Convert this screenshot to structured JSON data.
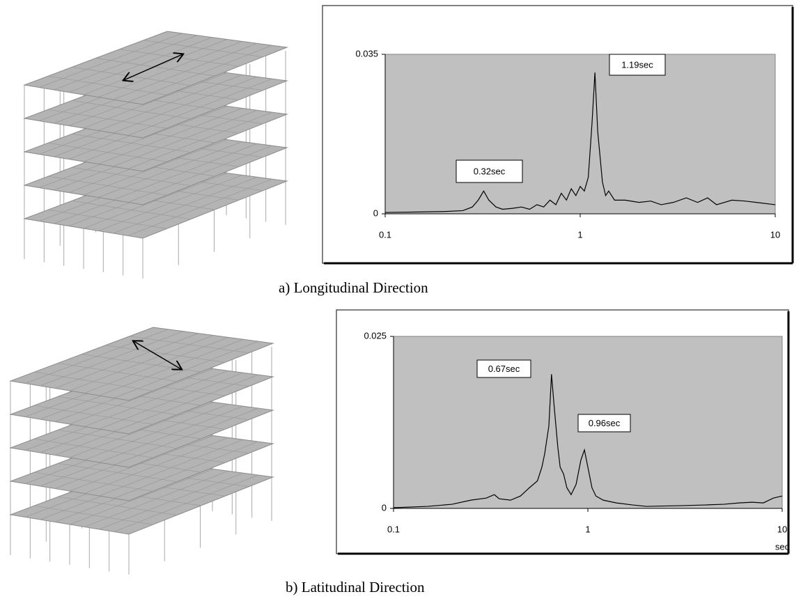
{
  "chart_data": [
    {
      "type": "line",
      "xscale": "log",
      "xlim": [
        0.1,
        10
      ],
      "xticks": [
        0.1,
        1,
        10
      ],
      "ylim": [
        0,
        0.035
      ],
      "yticks": [
        0,
        0.035
      ],
      "annotations": [
        "0.32sec",
        "1.19sec"
      ],
      "x": [
        0.1,
        0.15,
        0.2,
        0.25,
        0.28,
        0.3,
        0.32,
        0.34,
        0.37,
        0.4,
        0.45,
        0.5,
        0.55,
        0.6,
        0.65,
        0.7,
        0.75,
        0.8,
        0.85,
        0.9,
        0.95,
        1.0,
        1.05,
        1.1,
        1.15,
        1.19,
        1.23,
        1.3,
        1.35,
        1.4,
        1.5,
        1.7,
        2,
        2.3,
        2.6,
        3,
        3.5,
        4,
        4.5,
        5,
        6,
        7,
        8,
        10
      ],
      "series": [
        {
          "color": "#000000",
          "values": [
            0.0003,
            0.0004,
            0.0005,
            0.0007,
            0.0015,
            0.003,
            0.005,
            0.003,
            0.0015,
            0.001,
            0.0012,
            0.0015,
            0.001,
            0.002,
            0.0015,
            0.003,
            0.002,
            0.0045,
            0.003,
            0.0055,
            0.004,
            0.006,
            0.005,
            0.008,
            0.02,
            0.031,
            0.018,
            0.007,
            0.004,
            0.005,
            0.003,
            0.003,
            0.0025,
            0.0028,
            0.002,
            0.0025,
            0.0035,
            0.0025,
            0.0035,
            0.002,
            0.003,
            0.0028,
            0.0025,
            0.002
          ]
        }
      ]
    },
    {
      "type": "line",
      "xscale": "log",
      "xlim": [
        0.1,
        10
      ],
      "xticks": [
        0.1,
        1,
        10
      ],
      "ylim": [
        0,
        0.025
      ],
      "yticks": [
        0,
        0.025
      ],
      "xlabel": "sec",
      "annotations": [
        "0.67sec",
        "0.96sec"
      ],
      "x": [
        0.1,
        0.15,
        0.2,
        0.25,
        0.3,
        0.33,
        0.35,
        0.4,
        0.45,
        0.5,
        0.55,
        0.58,
        0.6,
        0.63,
        0.65,
        0.67,
        0.7,
        0.72,
        0.75,
        0.78,
        0.82,
        0.87,
        0.92,
        0.96,
        1.0,
        1.05,
        1.1,
        1.2,
        1.4,
        1.7,
        2,
        3,
        4,
        5,
        6,
        7,
        8,
        9,
        10
      ],
      "series": [
        {
          "color": "#000000",
          "values": [
            0.0001,
            0.0003,
            0.0006,
            0.0012,
            0.0015,
            0.002,
            0.0014,
            0.0012,
            0.0018,
            0.003,
            0.004,
            0.006,
            0.008,
            0.012,
            0.0195,
            0.015,
            0.009,
            0.006,
            0.005,
            0.003,
            0.002,
            0.0035,
            0.007,
            0.0085,
            0.006,
            0.003,
            0.0018,
            0.0012,
            0.0008,
            0.0005,
            0.0003,
            0.0004,
            0.0005,
            0.0006,
            0.0008,
            0.0009,
            0.0008,
            0.0015,
            0.0018
          ]
        }
      ]
    }
  ],
  "captions": [
    "a)  Longitudinal Direction",
    "b)  Latitudinal Direction"
  ]
}
